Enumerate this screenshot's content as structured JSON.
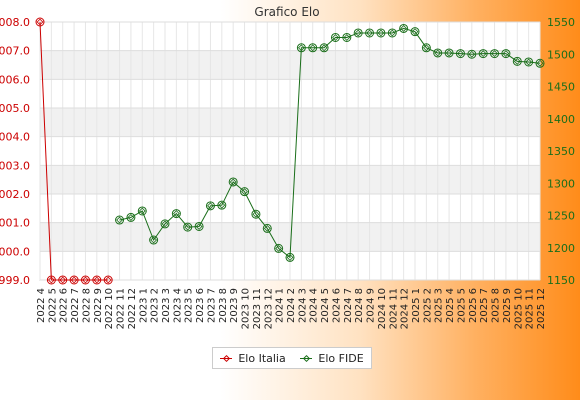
{
  "chart_data": {
    "type": "line",
    "title": "Grafico Elo",
    "grid": true,
    "legend_position": "bottom-center",
    "categories": [
      "2022 4",
      "2022 5",
      "2022 6",
      "2022 7",
      "2022 8",
      "2022 9",
      "2022 10",
      "2022 11",
      "2022 12",
      "2023 1",
      "2023 2",
      "2023 3",
      "2023 4",
      "2023 5",
      "2023 6",
      "2023 7",
      "2023 8",
      "2023 9",
      "2023 10",
      "2023 11",
      "2023 12",
      "2024 1",
      "2024 2",
      "2024 3",
      "2024 4",
      "2024 5",
      "2024 6",
      "2024 7",
      "2024 8",
      "2024 9",
      "2024 10",
      "2024 11",
      "2024 12",
      "2025 1",
      "2025 2",
      "2025 3",
      "2025 4",
      "2025 5",
      "2025 6",
      "2025 7",
      "2025 8",
      "2025 9",
      "2025 10",
      "2025 11",
      "2025 12"
    ],
    "y_left": {
      "ylim": [
        999.0,
        1008.0
      ],
      "ticks": [
        "999.0",
        "1000.0",
        "1001.0",
        "1002.0",
        "1003.0",
        "1004.0",
        "1005.0",
        "1006.0",
        "1007.0",
        "1008.0"
      ],
      "color": "#cc0000"
    },
    "y_right": {
      "ylim": [
        1150,
        1550
      ],
      "ticks": [
        "1150",
        "1200",
        "1250",
        "1300",
        "1350",
        "1400",
        "1450",
        "1500",
        "1550"
      ],
      "color": "#1a6e1a"
    },
    "series": [
      {
        "name": "Elo Italia",
        "axis": "left",
        "color": "#cc0000",
        "values": [
          1008.0,
          999.0,
          999.0,
          999.0,
          999.0,
          999.0,
          999.0,
          null,
          null,
          null,
          null,
          null,
          null,
          null,
          null,
          null,
          null,
          null,
          null,
          null,
          null,
          null,
          null,
          null,
          null,
          null,
          null,
          null,
          null,
          null,
          null,
          null,
          null,
          null,
          null,
          null,
          null,
          null,
          null,
          null,
          null,
          null,
          null,
          null,
          null
        ]
      },
      {
        "name": "Elo FIDE",
        "axis": "right",
        "color": "#1a6e1a",
        "values": [
          null,
          null,
          null,
          null,
          null,
          null,
          null,
          1243,
          1247,
          1257,
          1212,
          1237,
          1253,
          1232,
          1233,
          1265,
          1266,
          1302,
          1287,
          1252,
          1230,
          1199,
          1185,
          1510,
          1510,
          1510,
          1526,
          1526,
          1533,
          1533,
          1533,
          1533,
          1540,
          1535,
          1510,
          1502,
          1502,
          1501,
          1500,
          1501,
          1501,
          1501,
          1489,
          1488,
          1486
        ]
      }
    ]
  }
}
